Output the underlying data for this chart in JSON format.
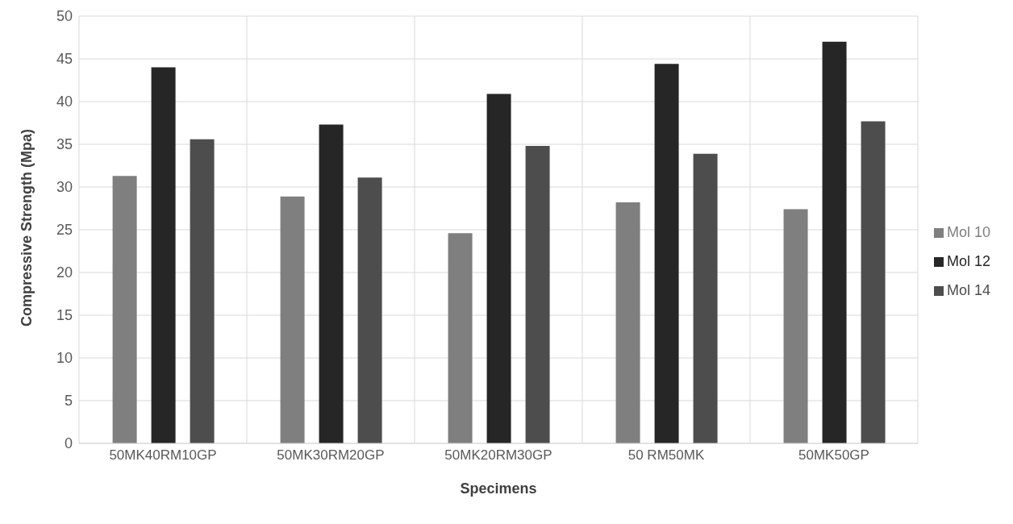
{
  "chart_data": {
    "type": "bar",
    "xlabel": "Specimens",
    "ylabel": "Compressive Strength (Mpa)",
    "categories": [
      "50MK40RM10GP",
      "50MK30RM20GP",
      "50MK20RM30GP",
      "50 RM50MK",
      "50MK50GP"
    ],
    "series": [
      {
        "name": "Mol 10",
        "color": "#7f7f7f",
        "values": [
          31.3,
          28.9,
          24.6,
          28.2,
          27.4
        ]
      },
      {
        "name": "Mol 12",
        "color": "#262626",
        "values": [
          44,
          37.3,
          40.9,
          44.4,
          47
        ]
      },
      {
        "name": "Mol 14",
        "color": "#4d4d4d",
        "values": [
          35.6,
          31.1,
          34.8,
          33.9,
          37.7
        ]
      }
    ],
    "ylim": [
      0,
      50
    ],
    "yticks": [
      0,
      5,
      10,
      15,
      20,
      25,
      30,
      35,
      40,
      45,
      50
    ],
    "grid": true,
    "legend": "right"
  }
}
